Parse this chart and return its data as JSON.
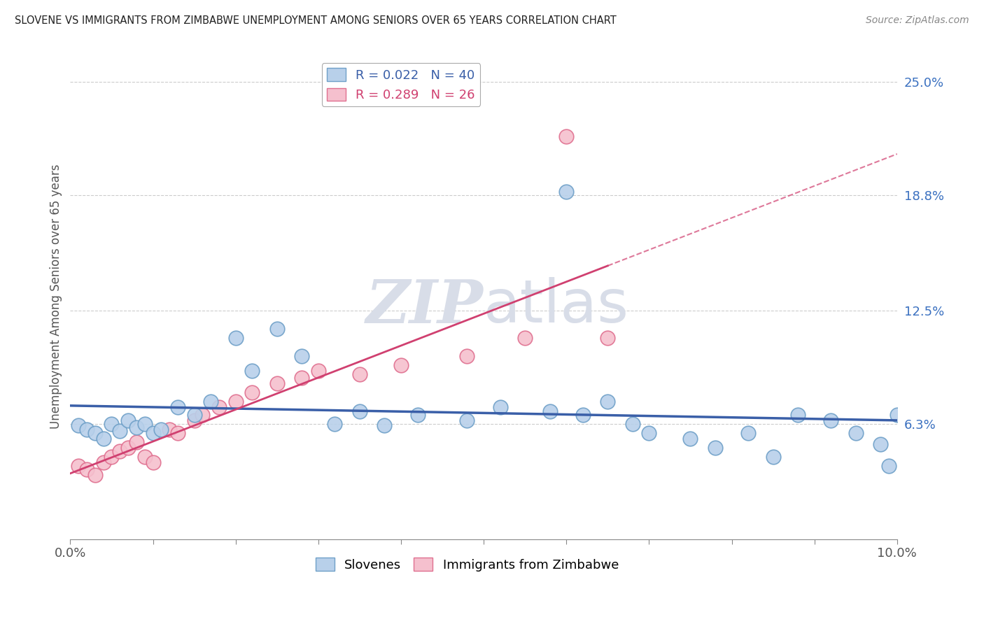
{
  "title": "SLOVENE VS IMMIGRANTS FROM ZIMBABWE UNEMPLOYMENT AMONG SENIORS OVER 65 YEARS CORRELATION CHART",
  "source": "Source: ZipAtlas.com",
  "ylabel": "Unemployment Among Seniors over 65 years",
  "xlim": [
    0.0,
    0.1
  ],
  "ylim": [
    0.0,
    0.265
  ],
  "xticks": [
    0.0,
    0.01,
    0.02,
    0.03,
    0.04,
    0.05,
    0.06,
    0.07,
    0.08,
    0.09,
    0.1
  ],
  "xticklabels": [
    "0.0%",
    "",
    "",
    "",
    "",
    "",
    "",
    "",
    "",
    "",
    "10.0%"
  ],
  "yticks": [
    0.063,
    0.125,
    0.188,
    0.25
  ],
  "yticklabels": [
    "6.3%",
    "12.5%",
    "18.8%",
    "25.0%"
  ],
  "legend1_r": "0.022",
  "legend1_n": "40",
  "legend2_r": "0.289",
  "legend2_n": "26",
  "slovene_color": "#b8d0ea",
  "slovene_edge": "#6fa0c8",
  "zimb_color": "#f5c0ce",
  "zimb_edge": "#e07090",
  "trendline_blue": "#3a5fa8",
  "trendline_pink": "#d04070",
  "watermark_color": "#d8dde8",
  "background_color": "#ffffff",
  "grid_color": "#cccccc",
  "slovene_x": [
    0.001,
    0.002,
    0.003,
    0.004,
    0.005,
    0.006,
    0.007,
    0.008,
    0.009,
    0.01,
    0.011,
    0.013,
    0.015,
    0.017,
    0.02,
    0.022,
    0.025,
    0.028,
    0.032,
    0.035,
    0.038,
    0.042,
    0.048,
    0.052,
    0.058,
    0.062,
    0.065,
    0.068,
    0.07,
    0.075,
    0.078,
    0.082,
    0.085,
    0.088,
    0.092,
    0.095,
    0.098,
    0.099,
    0.1,
    0.06
  ],
  "slovene_y": [
    0.062,
    0.06,
    0.058,
    0.055,
    0.063,
    0.059,
    0.065,
    0.061,
    0.063,
    0.058,
    0.06,
    0.072,
    0.068,
    0.075,
    0.11,
    0.092,
    0.115,
    0.1,
    0.063,
    0.07,
    0.062,
    0.068,
    0.065,
    0.072,
    0.07,
    0.068,
    0.075,
    0.063,
    0.058,
    0.055,
    0.05,
    0.058,
    0.045,
    0.068,
    0.065,
    0.058,
    0.052,
    0.04,
    0.068,
    0.19
  ],
  "zimb_x": [
    0.001,
    0.002,
    0.003,
    0.004,
    0.005,
    0.006,
    0.007,
    0.008,
    0.009,
    0.01,
    0.012,
    0.013,
    0.015,
    0.016,
    0.018,
    0.02,
    0.022,
    0.025,
    0.028,
    0.03,
    0.035,
    0.04,
    0.048,
    0.055,
    0.06,
    0.065
  ],
  "zimb_y": [
    0.04,
    0.038,
    0.035,
    0.042,
    0.045,
    0.048,
    0.05,
    0.053,
    0.045,
    0.042,
    0.06,
    0.058,
    0.065,
    0.068,
    0.072,
    0.075,
    0.08,
    0.085,
    0.088,
    0.092,
    0.09,
    0.095,
    0.1,
    0.11,
    0.22,
    0.11
  ]
}
